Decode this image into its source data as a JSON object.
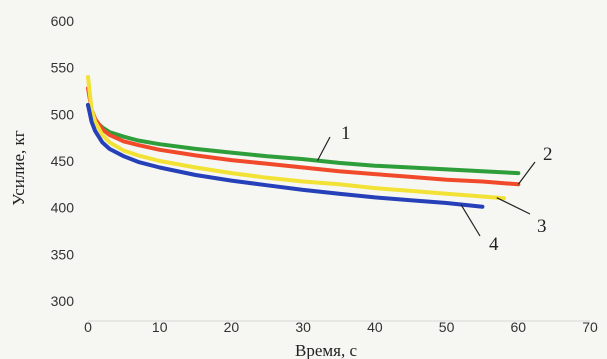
{
  "chart_data": {
    "type": "line",
    "title": "",
    "xlabel": "Время, с",
    "ylabel": "Усилие, кг",
    "xlim": [
      0,
      70
    ],
    "ylim": [
      300,
      600
    ],
    "xticks": [
      0,
      10,
      20,
      30,
      40,
      50,
      60,
      70
    ],
    "yticks": [
      300,
      350,
      400,
      450,
      500,
      550,
      600
    ],
    "grid": false,
    "legend": "none",
    "series": [
      {
        "name": "1",
        "color": "#2e9e3a",
        "x": [
          0,
          0.5,
          1,
          2,
          3,
          5,
          7,
          10,
          15,
          20,
          25,
          30,
          35,
          40,
          45,
          50,
          55,
          60
        ],
        "y": [
          510,
          500,
          493,
          486,
          481,
          476,
          472,
          468,
          463,
          459,
          455,
          452,
          448,
          445,
          443,
          441,
          439,
          437
        ]
      },
      {
        "name": "2",
        "color": "#f04a2a",
        "x": [
          0,
          0.5,
          1,
          2,
          3,
          5,
          7,
          10,
          15,
          20,
          25,
          30,
          35,
          40,
          45,
          50,
          55,
          60
        ],
        "y": [
          528,
          505,
          495,
          484,
          478,
          471,
          467,
          462,
          456,
          451,
          447,
          443,
          439,
          436,
          433,
          430,
          428,
          425
        ]
      },
      {
        "name": "3",
        "color": "#f2e236",
        "x": [
          0,
          0.5,
          1,
          2,
          3,
          5,
          7,
          10,
          15,
          20,
          25,
          30,
          35,
          40,
          45,
          50,
          55,
          58
        ],
        "y": [
          540,
          505,
          492,
          478,
          470,
          461,
          456,
          450,
          443,
          437,
          432,
          428,
          425,
          421,
          418,
          415,
          412,
          410
        ]
      },
      {
        "name": "4",
        "color": "#2540b8",
        "x": [
          0,
          0.5,
          1,
          2,
          3,
          5,
          7,
          10,
          15,
          20,
          25,
          30,
          35,
          40,
          45,
          50,
          55
        ],
        "y": [
          510,
          492,
          482,
          470,
          463,
          455,
          449,
          443,
          435,
          429,
          424,
          419,
          415,
          411,
          408,
          405,
          401
        ]
      }
    ],
    "callouts": [
      "1",
      "2",
      "3",
      "4"
    ]
  }
}
